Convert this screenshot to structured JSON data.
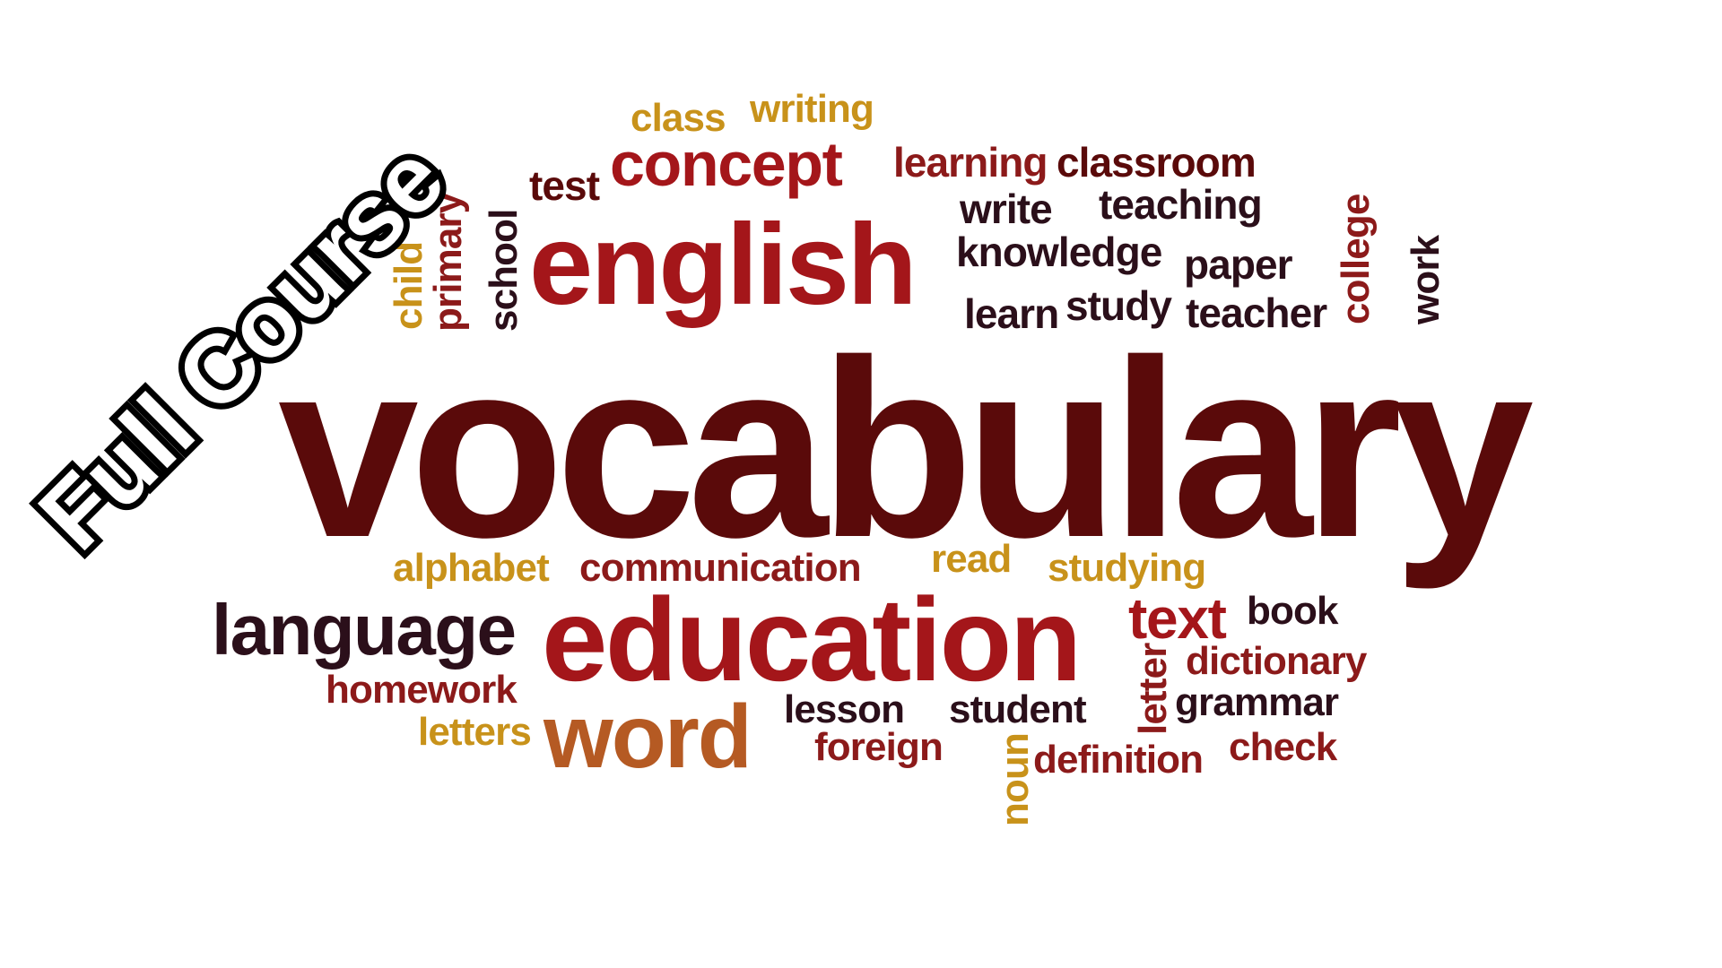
{
  "banner": {
    "text": "Full Course"
  },
  "words": {
    "vocabulary": "vocabulary",
    "english": "english",
    "education": "education",
    "word": "word",
    "language": "language",
    "concept": "concept",
    "text": "text",
    "class": "class",
    "writing": "writing",
    "learning": "learning",
    "classroom": "classroom",
    "test": "test",
    "write": "write",
    "teaching": "teaching",
    "knowledge": "knowledge",
    "paper": "paper",
    "learn": "learn",
    "study": "study",
    "teacher": "teacher",
    "child": "child",
    "primary": "primary",
    "school": "school",
    "college": "college",
    "work": "work",
    "alphabet": "alphabet",
    "communication": "communication",
    "read": "read",
    "studying": "studying",
    "book": "book",
    "dictionary": "dictionary",
    "letter": "letter",
    "grammar": "grammar",
    "homework": "homework",
    "letters": "letters",
    "lesson": "lesson",
    "student": "student",
    "foreign": "foreign",
    "noun": "noun",
    "definition": "definition",
    "check": "check"
  },
  "colors": {
    "dark_maroon": "#5a0a0a",
    "maroon": "#8c1a1a",
    "red": "#a4161a",
    "plum": "#2b0f1a",
    "gold": "#c8921a",
    "orange": "#b55a23",
    "banner_fill": "#ffffff",
    "banner_outline": "#000000"
  }
}
